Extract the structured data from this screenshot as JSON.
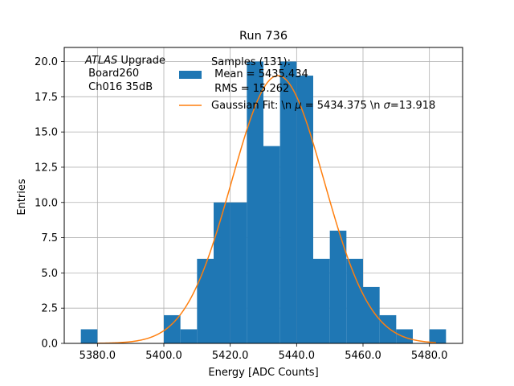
{
  "chart_data": {
    "type": "histogram",
    "title": "Run 736",
    "xlabel": "Energy [ADC Counts]",
    "ylabel": "Entries",
    "xlim": [
      5370,
      5490
    ],
    "ylim": [
      0,
      21
    ],
    "xticks": [
      5380,
      5400,
      5420,
      5440,
      5460,
      5480
    ],
    "xtick_labels": [
      "5380.0",
      "5400.0",
      "5420.0",
      "5440.0",
      "5460.0",
      "5480.0"
    ],
    "yticks": [
      0,
      2.5,
      5,
      7.5,
      10,
      12.5,
      15,
      17.5,
      20
    ],
    "ytick_labels": [
      "0.0",
      "2.5",
      "5.0",
      "7.5",
      "10.0",
      "12.5",
      "15.0",
      "17.5",
      "20.0"
    ],
    "grid": true,
    "bin_edges": [
      5375,
      5380,
      5385,
      5390,
      5395,
      5400,
      5405,
      5410,
      5415,
      5420,
      5425,
      5430,
      5435,
      5440,
      5445,
      5450,
      5455,
      5460,
      5465,
      5470,
      5475,
      5480,
      5485
    ],
    "counts": [
      1,
      0,
      0,
      0,
      0,
      2,
      1,
      6,
      10,
      10,
      20,
      14,
      20,
      19,
      6,
      8,
      6,
      4,
      2,
      1,
      0,
      1
    ],
    "fit": {
      "type": "gaussian",
      "mu": 5434.375,
      "sigma": 13.918,
      "amplitude": 19.0,
      "x_range": [
        5380,
        5482
      ]
    },
    "bar_color": "#1f77b4",
    "fit_color": "#ff7f0e",
    "annotation": {
      "lines": [
        "ATLAS Upgrade",
        " Board260",
        " Ch016 35dB"
      ],
      "italic_word": "ATLAS",
      "rest_of_first_line": " Upgrade"
    },
    "legend": {
      "location": "top-right",
      "entries": [
        {
          "kind": "patch",
          "lines": [
            "Samples (131):",
            " Mean = 5435.434",
            " RMS = 15.262"
          ]
        },
        {
          "kind": "line",
          "label_parts": [
            "Gaussian Fit: \\n ",
            "μ",
            " = 5434.375 \\n ",
            "σ",
            "=13.918"
          ]
        }
      ]
    }
  }
}
